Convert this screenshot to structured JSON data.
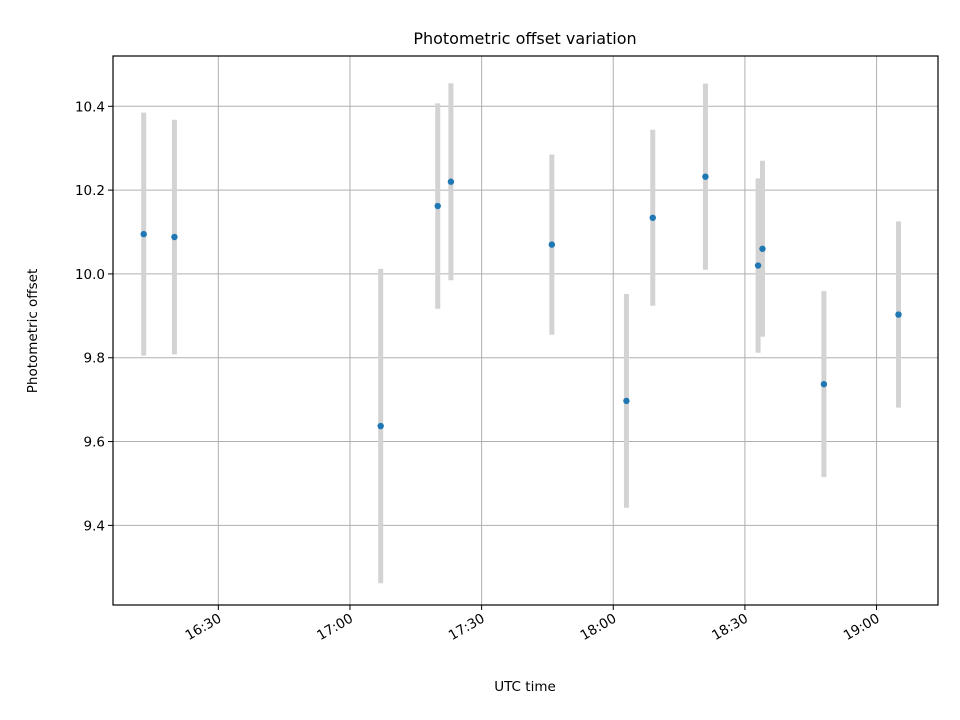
{
  "chart_data": {
    "type": "scatter",
    "title": "Photometric offset variation",
    "xlabel": "UTC time",
    "ylabel": "Photometric offset",
    "x_ticks": [
      "16:30",
      "17:00",
      "17:30",
      "18:00",
      "18:30",
      "19:00"
    ],
    "y_ticks": [
      "9.4",
      "9.6",
      "9.8",
      "10.0",
      "10.2",
      "10.4"
    ],
    "xlim": [
      "16:06",
      "19:14"
    ],
    "ylim": [
      9.21,
      10.52
    ],
    "grid": true,
    "colors": {
      "point": "#1f77b4",
      "errorbar": "#d3d3d3"
    },
    "points": [
      {
        "x": "16:13",
        "y": 10.095,
        "err": 0.29
      },
      {
        "x": "16:20",
        "y": 10.088,
        "err": 0.28
      },
      {
        "x": "17:07",
        "y": 9.637,
        "err": 0.375
      },
      {
        "x": "17:20",
        "y": 10.162,
        "err": 0.245
      },
      {
        "x": "17:23",
        "y": 10.22,
        "err": 0.235
      },
      {
        "x": "17:46",
        "y": 10.07,
        "err": 0.215
      },
      {
        "x": "18:03",
        "y": 9.697,
        "err": 0.255
      },
      {
        "x": "18:09",
        "y": 10.134,
        "err": 0.21
      },
      {
        "x": "18:21",
        "y": 10.232,
        "err": 0.222
      },
      {
        "x": "18:33",
        "y": 10.02,
        "err": 0.208
      },
      {
        "x": "18:34",
        "y": 10.06,
        "err": 0.21
      },
      {
        "x": "18:48",
        "y": 9.737,
        "err": 0.222
      },
      {
        "x": "19:05",
        "y": 9.903,
        "err": 0.222
      }
    ]
  }
}
